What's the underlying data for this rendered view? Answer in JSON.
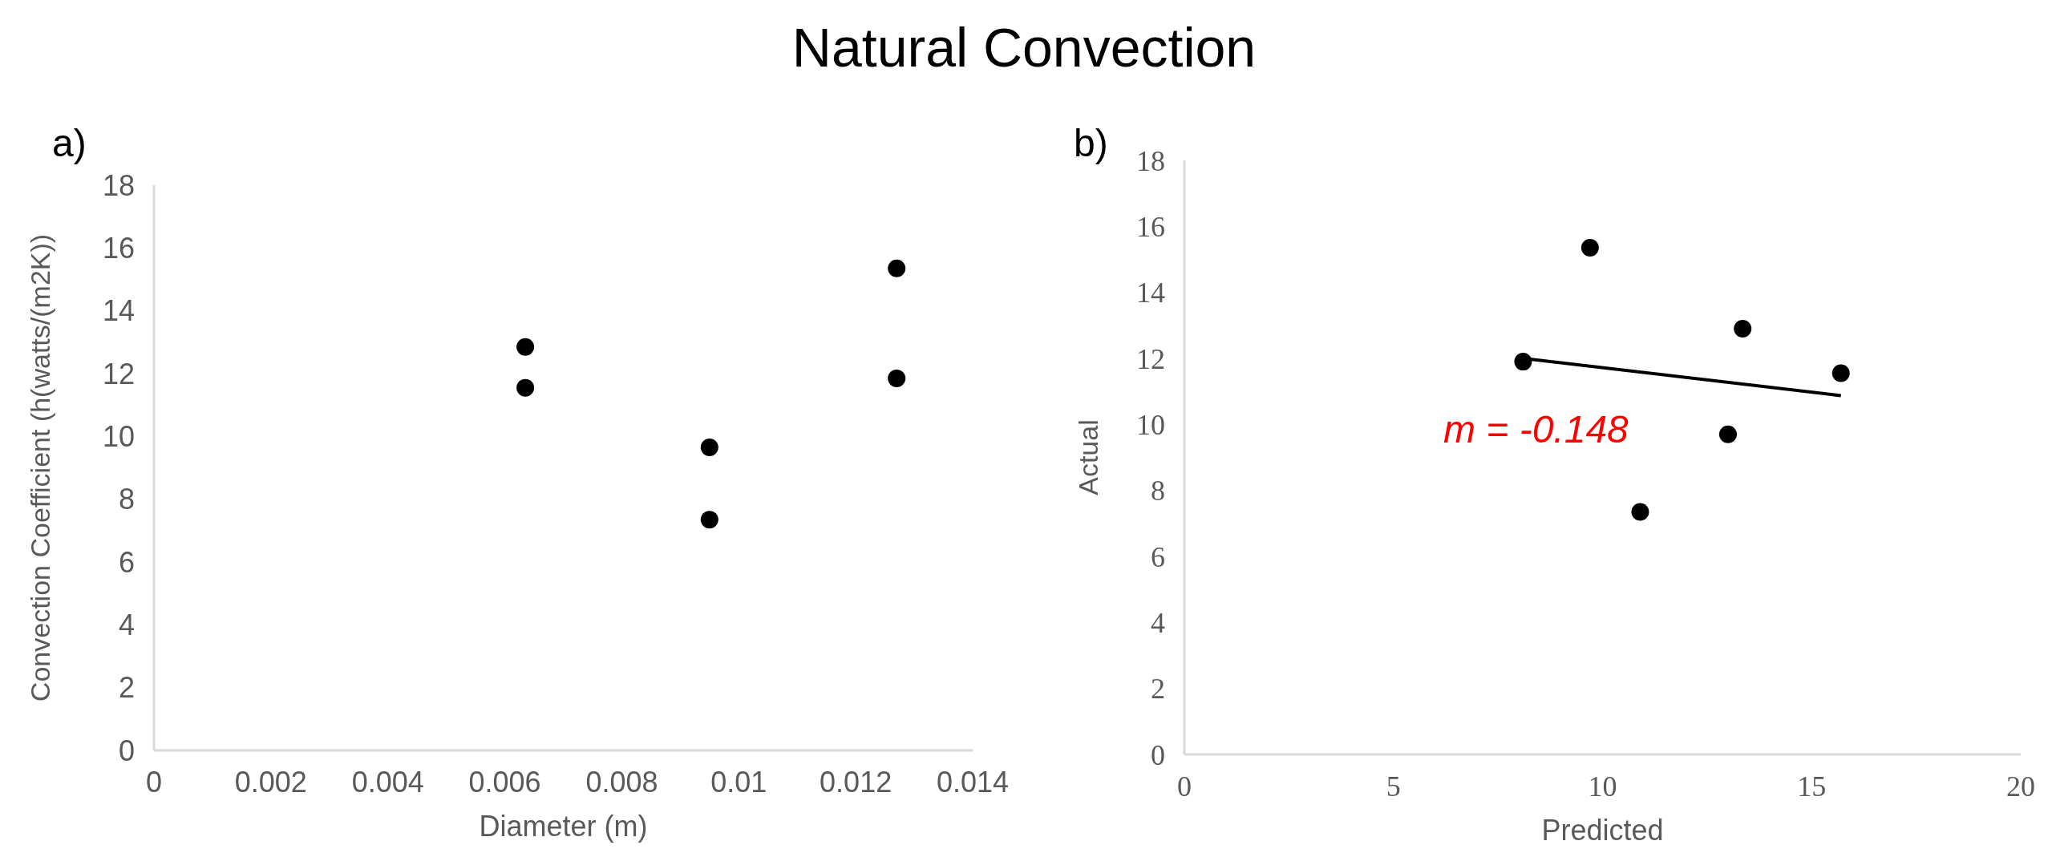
{
  "chart_data": [
    {
      "type": "scatter",
      "xlabel": "Diameter (m)",
      "ylabel": "Convection Coefficient (h(watts/(m2K))",
      "annotations": [
        "a)"
      ],
      "x": [
        0.00635,
        0.00635,
        0.0095,
        0.0095,
        0.0127,
        0.0127
      ],
      "series": [
        {
          "color": "#000000",
          "values": [
            12.85,
            11.55,
            9.65,
            7.35,
            15.35,
            11.85
          ]
        }
      ],
      "xlim": [
        0,
        0.014
      ],
      "xticks": [
        0,
        0.002,
        0.004,
        0.006,
        0.008,
        0.01,
        0.012,
        0.014
      ],
      "ylim": [
        0,
        18
      ],
      "yticks": [
        0,
        2,
        4,
        6,
        8,
        10,
        12,
        14,
        16,
        18
      ],
      "marker": "circle"
    },
    {
      "type": "scatter",
      "title": "Natural Convection",
      "xlabel": "Predicted",
      "ylabel": "Actual",
      "annotations": [
        "b)",
        "m = -0.148"
      ],
      "series": [
        {
          "color": "#000000",
          "x": [
            8.1,
            9.7,
            10.9,
            13.0,
            13.35,
            15.7
          ],
          "values": [
            11.9,
            15.35,
            7.35,
            9.7,
            12.9,
            11.55
          ]
        },
        {
          "type": "line",
          "marker": "none",
          "color": "#000000",
          "x": [
            8.1,
            15.7
          ],
          "values": [
            12.0,
            10.87
          ]
        }
      ],
      "xlim": [
        0,
        20
      ],
      "xticks": [
        0,
        5,
        10,
        15,
        20
      ],
      "ylim": [
        0,
        18
      ],
      "yticks": [
        0,
        2,
        4,
        6,
        8,
        10,
        12,
        14,
        16,
        18
      ],
      "marker": "circle"
    }
  ]
}
